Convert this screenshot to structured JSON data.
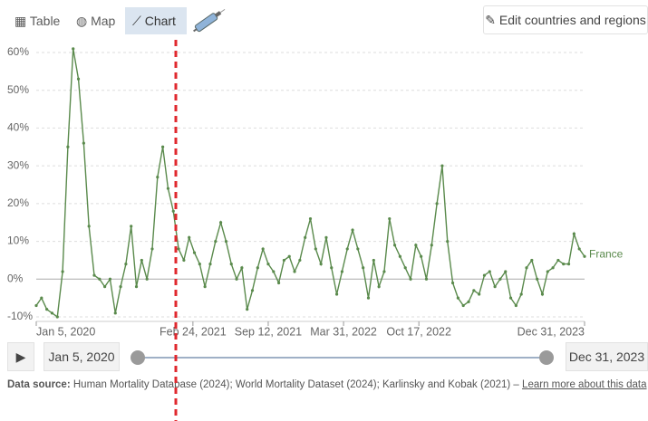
{
  "tabs": [
    "Table",
    "Map",
    "Chart"
  ],
  "edit_button": "Edit countries and regions",
  "chart_data": {
    "type": "line",
    "x": [
      "2020-01-05",
      "2020-01-19",
      "2020-02-02",
      "2020-02-16",
      "2020-03-01",
      "2020-03-15",
      "2020-03-29",
      "2020-04-12",
      "2020-04-26",
      "2020-05-10",
      "2020-05-24",
      "2020-06-07",
      "2020-06-21",
      "2020-07-05",
      "2020-07-19",
      "2020-08-02",
      "2020-08-16",
      "2020-08-30",
      "2020-09-13",
      "2020-09-27",
      "2020-10-11",
      "2020-10-25",
      "2020-11-08",
      "2020-11-22",
      "2020-12-06",
      "2020-12-20",
      "2021-01-03",
      "2021-01-17",
      "2021-01-31",
      "2021-02-14",
      "2021-02-28",
      "2021-03-14",
      "2021-03-28",
      "2021-04-11",
      "2021-04-25",
      "2021-05-09",
      "2021-05-23",
      "2021-06-06",
      "2021-06-20",
      "2021-07-04",
      "2021-07-18",
      "2021-08-01",
      "2021-08-15",
      "2021-08-29",
      "2021-09-12",
      "2021-09-26",
      "2021-10-10",
      "2021-10-24",
      "2021-11-07",
      "2021-11-21",
      "2021-12-05",
      "2021-12-19",
      "2022-01-02",
      "2022-01-16",
      "2022-01-30",
      "2022-02-13",
      "2022-02-27",
      "2022-03-13",
      "2022-03-27",
      "2022-04-10",
      "2022-04-24",
      "2022-05-08",
      "2022-05-22",
      "2022-06-05",
      "2022-06-19",
      "2022-07-03",
      "2022-07-17",
      "2022-07-31",
      "2022-08-14",
      "2022-08-28",
      "2022-09-11",
      "2022-09-25",
      "2022-10-09",
      "2022-10-23",
      "2022-11-06",
      "2022-11-20",
      "2022-12-04",
      "2022-12-18",
      "2023-01-01",
      "2023-01-15",
      "2023-01-29",
      "2023-02-12",
      "2023-02-26",
      "2023-03-12",
      "2023-03-26",
      "2023-04-09",
      "2023-04-23",
      "2023-05-07",
      "2023-05-21",
      "2023-06-04",
      "2023-06-18",
      "2023-07-02",
      "2023-07-16",
      "2023-07-30",
      "2023-08-13",
      "2023-08-27",
      "2023-09-10",
      "2023-09-24",
      "2023-10-08",
      "2023-10-22",
      "2023-11-05",
      "2023-11-19",
      "2023-12-03",
      "2023-12-17",
      "2023-12-31"
    ],
    "series": [
      {
        "name": "France",
        "color": "#5a8a4c",
        "values": [
          -7,
          -5,
          -8,
          -9,
          -10,
          2,
          35,
          61,
          53,
          36,
          14,
          1,
          0,
          -2,
          0,
          -9,
          -2,
          4,
          14,
          -2,
          5,
          0,
          8,
          27,
          35,
          24,
          18,
          8,
          5,
          11,
          7,
          4,
          -2,
          4,
          10,
          15,
          10,
          4,
          0,
          3,
          -8,
          -3,
          3,
          8,
          4,
          2,
          -1,
          5,
          6,
          2,
          5,
          11,
          16,
          8,
          4,
          11,
          3,
          -4,
          2,
          8,
          13,
          8,
          3,
          -5,
          5,
          -2,
          2,
          16,
          9,
          6,
          3,
          0,
          9,
          6,
          0,
          9,
          20,
          30,
          10,
          -1,
          -5,
          -7,
          -6,
          -3,
          -4,
          1,
          2,
          -2,
          0,
          2,
          -5,
          -7,
          -4,
          3,
          5,
          0,
          -4,
          2,
          3,
          5,
          4,
          4,
          12,
          8,
          6
        ]
      }
    ],
    "xlim": [
      "2020-01-05",
      "2023-12-31"
    ],
    "xticks": [
      {
        "value": "2020-01-05",
        "label": "Jan 5, 2020"
      },
      {
        "value": "2021-02-24",
        "label": "Feb 24, 2021"
      },
      {
        "value": "2021-09-12",
        "label": "Sep 12, 2021"
      },
      {
        "value": "2022-03-31",
        "label": "Mar 31, 2022"
      },
      {
        "value": "2022-10-17",
        "label": "Oct 17, 2022"
      },
      {
        "value": "2023-12-31",
        "label": "Dec 31, 2023"
      }
    ],
    "ylim": [
      -10,
      60
    ],
    "yticks": [
      {
        "value": -10,
        "label": "-10%"
      },
      {
        "value": 0,
        "label": "0%"
      },
      {
        "value": 10,
        "label": "10%"
      },
      {
        "value": 20,
        "label": "20%"
      },
      {
        "value": 30,
        "label": "30%"
      },
      {
        "value": 40,
        "label": "40%"
      },
      {
        "value": 50,
        "label": "50%"
      },
      {
        "value": 60,
        "label": "60%"
      }
    ],
    "grid": true
  },
  "timeline": {
    "start": "Jan 5, 2020",
    "end": "Dec 31, 2023"
  },
  "source": {
    "label": "Data source:",
    "text": "Human Mortality Database (2024); World Mortality Dataset (2024); Karlinsky and Kobak (2021) –",
    "link": "Learn more about this data"
  }
}
